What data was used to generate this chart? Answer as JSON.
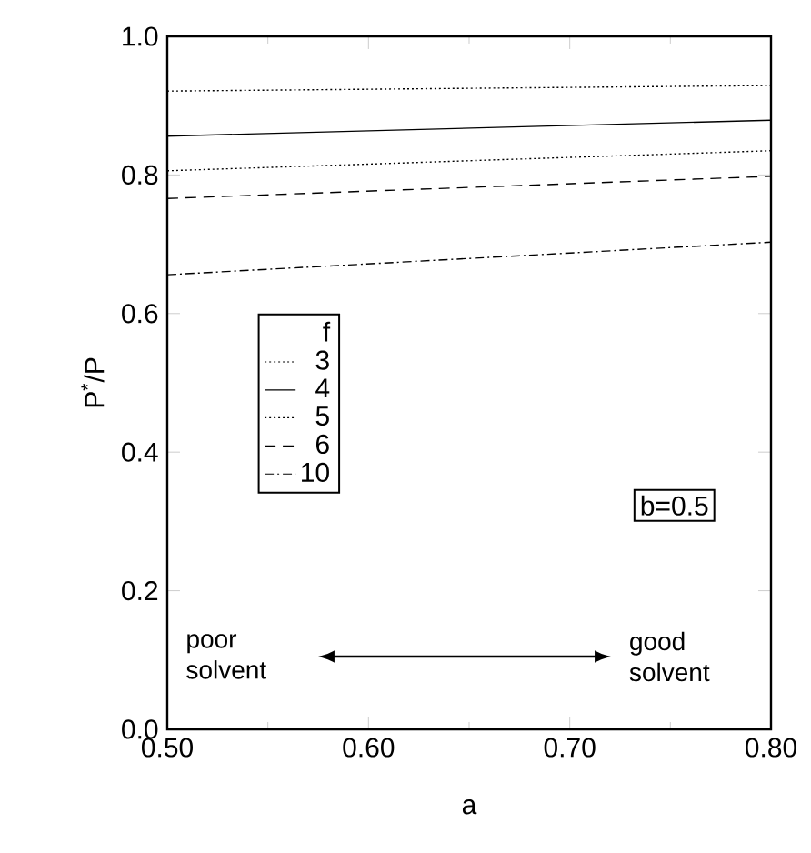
{
  "chart_data": {
    "type": "line",
    "xlabel": "a",
    "ylabel": "P$^{*}$/P",
    "legend_title": "f",
    "x": [
      0.5,
      0.8
    ],
    "series": [
      {
        "name": "3",
        "color": "#000000",
        "values": [
          0.921,
          0.929
        ],
        "line_style": "dotted"
      },
      {
        "name": "4",
        "color": "#000000",
        "values": [
          0.856,
          0.879
        ],
        "line_style": "solid"
      },
      {
        "name": "5",
        "color": "#000000",
        "values": [
          0.806,
          0.835
        ],
        "line_style": "dotted"
      },
      {
        "name": "6",
        "color": "#000000",
        "values": [
          0.766,
          0.798
        ],
        "line_style": "dashed"
      },
      {
        "name": "10",
        "color": "#000000",
        "values": [
          0.656,
          0.703
        ],
        "line_style": "dashdot"
      }
    ],
    "xlim": [
      0.5,
      0.8
    ],
    "ylim": [
      0,
      1.0
    ],
    "xticks": [
      {
        "value": 0.5,
        "label": "0.50"
      },
      {
        "value": 0.6,
        "label": "0.60"
      },
      {
        "value": 0.7,
        "label": "0.70"
      },
      {
        "value": 0.8,
        "label": "0.80"
      }
    ],
    "yticks": [
      {
        "value": 0,
        "label": "0.0"
      },
      {
        "value": 0.2,
        "label": "0.2"
      },
      {
        "value": 0.4,
        "label": "0.4"
      },
      {
        "value": 0.6,
        "label": "0.6"
      },
      {
        "value": 0.8,
        "label": "0.8"
      },
      {
        "value": 1.0,
        "label": "1.0"
      }
    ],
    "annotations": [
      "b=0.5",
      "poor solvent",
      "good solvent"
    ],
    "legend": "left",
    "grid": false,
    "marker": "none"
  }
}
